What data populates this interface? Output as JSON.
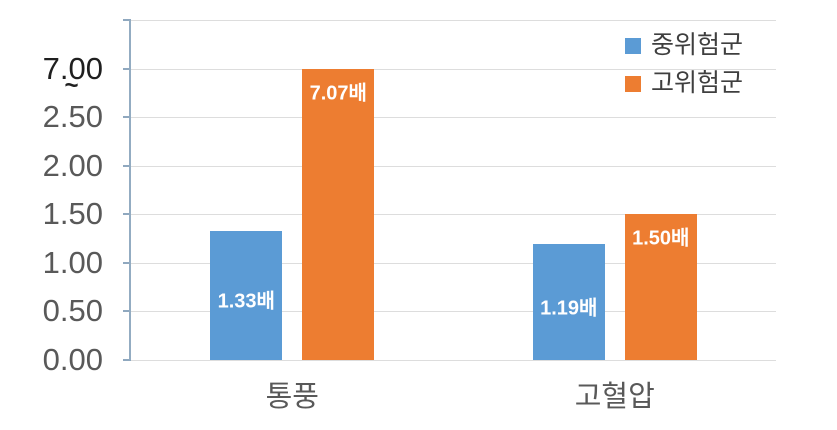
{
  "chart_data": {
    "type": "bar",
    "title": "",
    "categories": [
      "통풍",
      "고혈압"
    ],
    "series": [
      {
        "name": "중위험군",
        "color": "#5B9BD5",
        "values": [
          1.33,
          1.19
        ],
        "data_labels": [
          "1.33배",
          "1.19배"
        ],
        "label_position": "inside-center"
      },
      {
        "name": "고위험군",
        "color": "#ED7D31",
        "values": [
          7.07,
          1.5
        ],
        "data_labels": [
          "7.07배",
          "1.50배"
        ],
        "label_position": "inside-top"
      }
    ],
    "y_axis": {
      "tick_labels": [
        "7.00",
        "2.50",
        "2.00",
        "1.50",
        "1.00",
        "0.50",
        "0.00"
      ],
      "emphasized_tick": "7.00",
      "break_symbol": "~",
      "broken_axis": true,
      "unit_per_gridline": 0.5,
      "break_threshold": 2.5,
      "clip_display_value": 3.0
    },
    "legend": {
      "position": "top-right",
      "entries": [
        "중위험군",
        "고위험군"
      ]
    },
    "grid": true,
    "value_suffix": "배",
    "colors": {
      "grid": "#DDDDDD",
      "axis": "#93ACC2",
      "tick_label": "#595959",
      "tick_label_emphasis": "#1F1F1F",
      "category_label": "#595959",
      "legend_text": "#3F3F3F",
      "data_label": "#FFFFFF",
      "background": "#FFFFFF"
    }
  }
}
